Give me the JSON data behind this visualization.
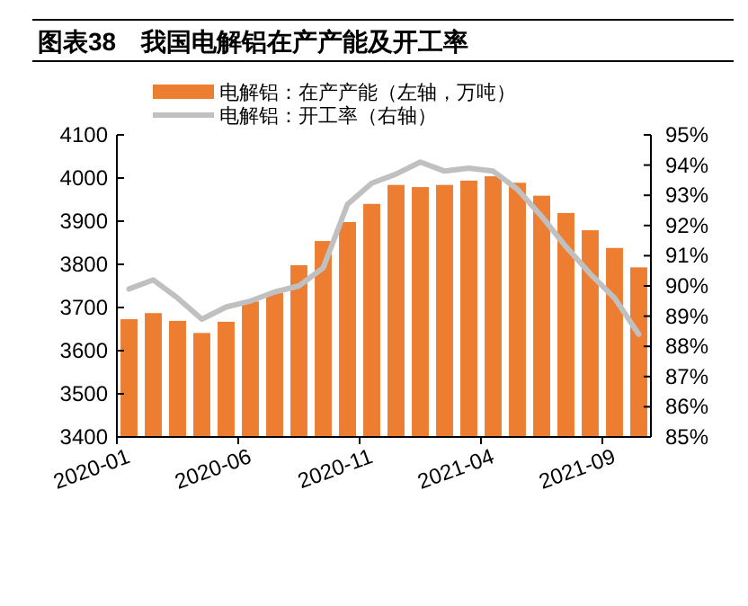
{
  "chart_data": {
    "type": "bar",
    "title": "图表38　我国电解铝在产产能及开工率",
    "categories": [
      "2020-01",
      null,
      null,
      null,
      null,
      "2020-06",
      null,
      null,
      null,
      null,
      "2020-11",
      null,
      null,
      null,
      null,
      "2021-04",
      null,
      null,
      null,
      null,
      "2021-09",
      null
    ],
    "series": [
      {
        "name": "电解铝：在产产能（左轴，万吨）",
        "color": "#ed7d31",
        "values": [
          3673,
          3687,
          3669,
          3641,
          3667,
          3714,
          3734,
          3798,
          3854,
          3898,
          3940,
          3984,
          3979,
          3984,
          3994,
          4004,
          3989,
          3959,
          3919,
          3879,
          3838,
          3793
        ]
      },
      {
        "type": "line",
        "axis": "y2",
        "name": "电解铝：开工率（右轴）",
        "color": "#c0c0c0",
        "values": [
          89.9,
          90.2,
          89.6,
          88.9,
          89.3,
          89.5,
          89.8,
          90.0,
          90.6,
          92.7,
          93.4,
          93.7,
          94.1,
          93.8,
          93.9,
          93.8,
          93.2,
          92.3,
          91.3,
          90.4,
          89.6,
          88.4
        ]
      }
    ],
    "ylim": [
      3400,
      4100
    ],
    "yticks": [
      3400,
      3500,
      3600,
      3700,
      3800,
      3900,
      4000,
      4100
    ],
    "y2lim": [
      85,
      95
    ],
    "y2ticks": [
      {
        "value": 85,
        "label": "85%"
      },
      {
        "value": 86,
        "label": "86%"
      },
      {
        "value": 87,
        "label": "87%"
      },
      {
        "value": 88,
        "label": "88%"
      },
      {
        "value": 89,
        "label": "89%"
      },
      {
        "value": 90,
        "label": "90%"
      },
      {
        "value": 91,
        "label": "91%"
      },
      {
        "value": 92,
        "label": "92%"
      },
      {
        "value": 93,
        "label": "93%"
      },
      {
        "value": 94,
        "label": "94%"
      },
      {
        "value": 95,
        "label": "95%"
      }
    ],
    "legend": "top"
  }
}
